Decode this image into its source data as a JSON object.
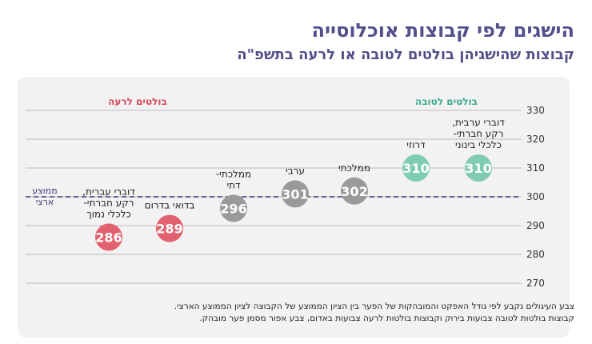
{
  "header": {
    "title": "הישגים לפי קבוצות אוכלוסייה",
    "subtitle": "קבוצות שהישגיהן בולטים לטובה או לרעה בתשפ\"ה"
  },
  "legend": {
    "good": "בולטים לטובה",
    "bad": "בולטים לרעה",
    "average": [
      "ממוצע",
      "ארצי"
    ]
  },
  "colors": {
    "good": "#7fcbb3",
    "bad": "#e2616f",
    "neutral": "#9a9a9a",
    "average_line": "#3b3b7a",
    "good_label": "#3aa98c",
    "bad_label": "#d4475b",
    "grid": "#b9b9bf"
  },
  "chart_data": {
    "type": "scatter",
    "title": "הישגים לפי קבוצות אוכלוסייה",
    "subtitle": "קבוצות שהישגיהן בולטים לטובה או לרעה בתשפ\"ה",
    "ylim": [
      270,
      330
    ],
    "yticks": [
      "330",
      "320",
      "310",
      "300",
      "290",
      "280",
      "270"
    ],
    "average": 300,
    "grid": true,
    "points": [
      {
        "label": [
          "דוברי ערבית,",
          "רקע חברתי-",
          "כלכלי בינוני"
        ],
        "value": 310,
        "value_label": "310",
        "group": "good"
      },
      {
        "label": [
          "דרוזי"
        ],
        "value": 310,
        "value_label": "310",
        "group": "good"
      },
      {
        "label": [
          "ממלכתי"
        ],
        "value": 302,
        "value_label": "302",
        "group": "neutral"
      },
      {
        "label": [
          "ערבי"
        ],
        "value": 301,
        "value_label": "301",
        "group": "neutral"
      },
      {
        "label": [
          "ממלכתי-",
          "דתי"
        ],
        "value": 296,
        "value_label": "296",
        "group": "neutral"
      },
      {
        "label": [
          "בדואי בדרום"
        ],
        "value": 289,
        "value_label": "289",
        "group": "bad"
      },
      {
        "label": [
          "דוברי עברית,",
          "רקע חברתי-",
          "כלכלי נמוך"
        ],
        "value": 286,
        "value_label": "286",
        "group": "bad"
      }
    ]
  },
  "note": {
    "line1": "צבע העיגולים נקבע לפי גודל האפקט והמובהקות של הפער בין הציון הממוצע של הקבוצה לציון הממוצע הארצי.",
    "line2": "קבוצות בולטות לטובה צבועות בירוק וקבוצות בולטות לרעה צבועות באדום, צבע אפור מסמן פער מובהק."
  }
}
